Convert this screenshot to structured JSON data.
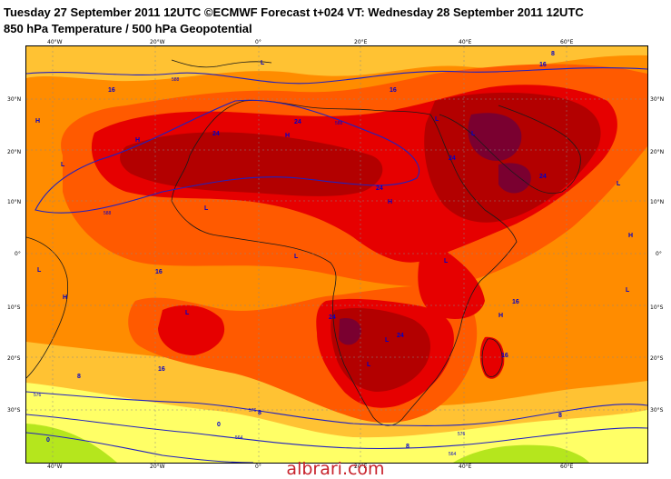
{
  "header": {
    "title_line1": "Tuesday 27 September 2011 12UTC ©ECMWF Forecast t+024 VT: Wednesday 28 September 2011 12UTC",
    "title_line2": "850 hPa Temperature / 500 hPa Geopotential"
  },
  "map": {
    "lat_labels": [
      "30°N",
      "20°N",
      "10°N",
      "0°",
      "10°S",
      "20°S",
      "30°S"
    ],
    "lon_labels_top": [
      "40°W",
      "20°W",
      "0°",
      "20°E",
      "40°E",
      "60°E"
    ],
    "lon_labels_bottom": [
      "40°W",
      "20°W",
      "0°",
      "20°E",
      "40°E",
      "60°E"
    ],
    "temperature_labels": [
      "16",
      "16",
      "24",
      "24",
      "24",
      "24",
      "24",
      "16",
      "16",
      "16",
      "24",
      "24",
      "16",
      "16",
      "8",
      "8",
      "8",
      "0",
      "0",
      "8",
      "8"
    ],
    "geopotential_labels": [
      "588",
      "588",
      "588",
      "576",
      "576",
      "576",
      "564",
      "564"
    ],
    "pressure_centers": [
      "H",
      "H",
      "H",
      "H",
      "H",
      "H",
      "H",
      "L",
      "L",
      "L",
      "L",
      "L",
      "L",
      "L",
      "L",
      "L",
      "L",
      "L",
      "L",
      "L"
    ],
    "colors": {
      "yellow": "#ffff66",
      "light_orange": "#ffc233",
      "orange": "#ff8c00",
      "dark_orange": "#ff5a00",
      "red": "#e60000",
      "dark_red": "#b30000",
      "deep_red": "#7a0030",
      "green": "#b5e61d",
      "contour_blue": "#2020c0"
    }
  },
  "footer": {
    "watermark": "albrari.com"
  }
}
